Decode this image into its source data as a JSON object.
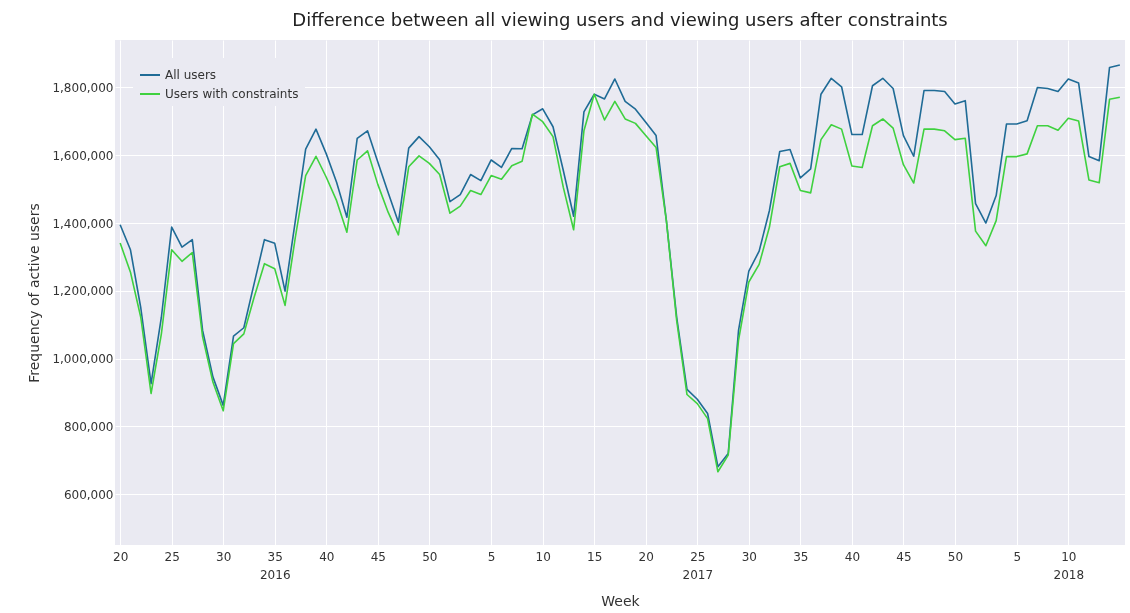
{
  "chart_data": {
    "type": "line",
    "title": "Difference between all viewing users and viewing users after constraints",
    "xlabel": "Week",
    "ylabel": "Frequency of active users",
    "categories": [
      "20",
      null,
      null,
      null,
      null,
      "25",
      null,
      null,
      null,
      null,
      "30",
      null,
      null,
      null,
      null,
      "35\n2016",
      null,
      null,
      null,
      null,
      "40",
      null,
      null,
      null,
      null,
      "45",
      null,
      null,
      null,
      null,
      "50",
      null,
      null,
      null,
      null,
      null,
      "5",
      null,
      null,
      null,
      null,
      "10",
      null,
      null,
      null,
      null,
      "15",
      null,
      null,
      null,
      null,
      "20",
      null,
      null,
      null,
      null,
      "25\n2017",
      null,
      null,
      null,
      null,
      "30",
      null,
      null,
      null,
      null,
      "35",
      null,
      null,
      null,
      null,
      "40",
      null,
      null,
      null,
      null,
      "45",
      null,
      null,
      null,
      null,
      "50",
      null,
      null,
      null,
      null,
      null,
      "5",
      null,
      null,
      null,
      null,
      "10\n2018",
      null,
      null,
      null,
      null,
      null
    ],
    "series": [
      {
        "name": "All users",
        "color": "#1f6b96",
        "values": [
          1395000,
          1321000,
          1150000,
          926000,
          1122000,
          1388000,
          1329000,
          1351000,
          1083000,
          946000,
          862000,
          1066000,
          1091000,
          1221000,
          1351000,
          1340000,
          1199000,
          1407000,
          1618000,
          1677000,
          1604000,
          1520000,
          1417000,
          1650000,
          1672000,
          1580000,
          1490000,
          1402000,
          1621000,
          1655000,
          1625000,
          1587000,
          1463000,
          1484000,
          1543000,
          1525000,
          1586000,
          1564000,
          1620000,
          1619000,
          1719000,
          1737000,
          1684000,
          1555000,
          1420000,
          1728000,
          1780000,
          1766000,
          1825000,
          1759000,
          1736000,
          1697000,
          1658000,
          1407000,
          1122000,
          909000,
          880000,
          838000,
          681000,
          720000,
          1083000,
          1258000,
          1317000,
          1437000,
          1611000,
          1617000,
          1533000,
          1560000,
          1780000,
          1827000,
          1802000,
          1661000,
          1661000,
          1805000,
          1827000,
          1797000,
          1658000,
          1597000,
          1791000,
          1791000,
          1788000,
          1751000,
          1761000,
          1457000,
          1400000,
          1481000,
          1692000,
          1692000,
          1702000,
          1800000,
          1797000,
          1788000,
          1825000,
          1813000,
          1596000,
          1584000,
          1859000,
          1866000
        ]
      },
      {
        "name": "Users with constraints",
        "color": "#3fd13f",
        "values": [
          1341000,
          1255000,
          1122000,
          897000,
          1073000,
          1321000,
          1287000,
          1313000,
          1064000,
          931000,
          846000,
          1044000,
          1073000,
          1181000,
          1280000,
          1265000,
          1157000,
          1358000,
          1540000,
          1597000,
          1535000,
          1466000,
          1373000,
          1586000,
          1613000,
          1514000,
          1432000,
          1365000,
          1566000,
          1598000,
          1576000,
          1543000,
          1429000,
          1450000,
          1496000,
          1484000,
          1540000,
          1529000,
          1569000,
          1582000,
          1721000,
          1699000,
          1655000,
          1505000,
          1380000,
          1672000,
          1780000,
          1704000,
          1759000,
          1707000,
          1694000,
          1658000,
          1623000,
          1407000,
          1112000,
          894000,
          867000,
          823000,
          666000,
          715000,
          1054000,
          1226000,
          1278000,
          1388000,
          1566000,
          1576000,
          1496000,
          1489000,
          1646000,
          1690000,
          1677000,
          1568000,
          1564000,
          1687000,
          1707000,
          1680000,
          1572000,
          1518000,
          1677000,
          1677000,
          1672000,
          1646000,
          1650000,
          1376000,
          1333000,
          1407000,
          1596000,
          1596000,
          1604000,
          1687000,
          1687000,
          1674000,
          1709000,
          1701000,
          1527000,
          1519000,
          1765000,
          1771000
        ]
      }
    ],
    "ylim": [
      450000,
      1940000
    ],
    "yticks": [
      {
        "value": 600000,
        "label": "600,000"
      },
      {
        "value": 800000,
        "label": "800,000"
      },
      {
        "value": 1000000,
        "label": "1,000,000"
      },
      {
        "value": 1200000,
        "label": "1,200,000"
      },
      {
        "value": 1400000,
        "label": "1,400,000"
      },
      {
        "value": 1600000,
        "label": "1,600,000"
      },
      {
        "value": 1800000,
        "label": "1,800,000"
      }
    ],
    "grid": true,
    "legend": "top left",
    "marker": "none",
    "line_style": "solid"
  }
}
